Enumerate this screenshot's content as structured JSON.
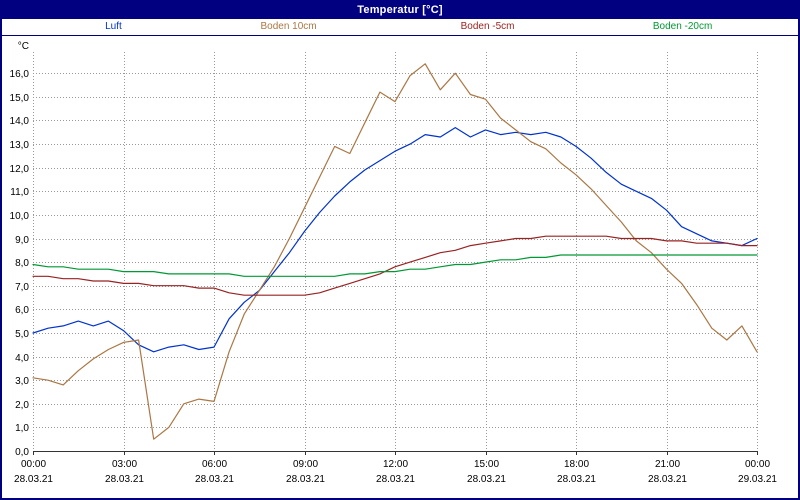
{
  "chart_data": {
    "type": "line",
    "title": "Temperatur [°C]",
    "ylabel": "°C",
    "xlabel": "",
    "x_range": [
      0,
      24
    ],
    "ylim": [
      0,
      16.9
    ],
    "grid": "dotted",
    "legend_position": "top",
    "colors": {
      "frame": "#000080",
      "grid": "#999999",
      "background": "#ffffff",
      "axis": "#333333"
    },
    "y_tick_labels": [
      "0,0",
      "1,0",
      "2,0",
      "3,0",
      "4,0",
      "5,0",
      "6,0",
      "7,0",
      "8,0",
      "9,0",
      "10,0",
      "11,0",
      "12,0",
      "13,0",
      "14,0",
      "15,0",
      "16,0"
    ],
    "x_ticks": [
      {
        "t": 0,
        "time": "00:00",
        "date": "28.03.21"
      },
      {
        "t": 3,
        "time": "03:00",
        "date": "28.03.21"
      },
      {
        "t": 6,
        "time": "06:00",
        "date": "28.03.21"
      },
      {
        "t": 9,
        "time": "09:00",
        "date": "28.03.21"
      },
      {
        "t": 12,
        "time": "12:00",
        "date": "28.03.21"
      },
      {
        "t": 15,
        "time": "15:00",
        "date": "28.03.21"
      },
      {
        "t": 18,
        "time": "18:00",
        "date": "28.03.21"
      },
      {
        "t": 21,
        "time": "21:00",
        "date": "28.03.21"
      },
      {
        "t": 24,
        "time": "00:00",
        "date": "29.03.21"
      }
    ],
    "x": [
      0,
      0.5,
      1,
      1.5,
      2,
      2.5,
      3,
      3.5,
      4,
      4.5,
      5,
      5.5,
      6,
      6.5,
      7,
      7.5,
      8,
      8.5,
      9,
      9.5,
      10,
      10.5,
      11,
      11.5,
      12,
      12.5,
      13,
      13.5,
      14,
      14.5,
      15,
      15.5,
      16,
      16.5,
      17,
      17.5,
      18,
      18.5,
      19,
      19.5,
      20,
      20.5,
      21,
      21.5,
      22,
      22.5,
      23,
      23.5,
      24
    ],
    "series": [
      {
        "name": "Luft",
        "color": "#0033cc",
        "values": [
          5.0,
          5.2,
          5.3,
          5.5,
          5.3,
          5.5,
          5.1,
          4.5,
          4.2,
          4.4,
          4.5,
          4.3,
          4.4,
          5.6,
          6.3,
          6.8,
          7.6,
          8.4,
          9.3,
          10.1,
          10.8,
          11.4,
          11.9,
          12.3,
          12.7,
          13.0,
          13.4,
          13.3,
          13.7,
          13.3,
          13.6,
          13.4,
          13.5,
          13.4,
          13.5,
          13.3,
          12.9,
          12.4,
          11.8,
          11.3,
          11.0,
          10.7,
          10.2,
          9.5,
          9.2,
          8.9,
          8.8,
          8.7,
          9.0
        ]
      },
      {
        "name": "Boden 10cm",
        "color": "#aa7744",
        "values": [
          3.1,
          3.0,
          2.8,
          3.4,
          3.9,
          4.3,
          4.6,
          4.7,
          0.5,
          1.0,
          2.0,
          2.2,
          2.1,
          4.2,
          5.8,
          6.8,
          7.8,
          9.0,
          10.3,
          11.6,
          12.9,
          12.6,
          13.9,
          15.2,
          14.8,
          15.9,
          16.4,
          15.3,
          16.0,
          15.1,
          14.9,
          14.1,
          13.6,
          13.1,
          12.8,
          12.2,
          11.7,
          11.1,
          10.4,
          9.7,
          8.9,
          8.4,
          7.7,
          7.1,
          6.2,
          5.2,
          4.7,
          5.3,
          4.2
        ]
      },
      {
        "name": "Boden -5cm",
        "color": "#992222",
        "values": [
          7.4,
          7.4,
          7.3,
          7.3,
          7.2,
          7.2,
          7.1,
          7.1,
          7.0,
          7.0,
          7.0,
          6.9,
          6.9,
          6.7,
          6.6,
          6.6,
          6.6,
          6.6,
          6.6,
          6.7,
          6.9,
          7.1,
          7.3,
          7.5,
          7.8,
          8.0,
          8.2,
          8.4,
          8.5,
          8.7,
          8.8,
          8.9,
          9.0,
          9.0,
          9.1,
          9.1,
          9.1,
          9.1,
          9.1,
          9.0,
          9.0,
          9.0,
          8.9,
          8.9,
          8.8,
          8.8,
          8.8,
          8.7,
          8.7
        ]
      },
      {
        "name": "Boden -20cm",
        "color": "#009933",
        "values": [
          7.9,
          7.8,
          7.8,
          7.7,
          7.7,
          7.7,
          7.6,
          7.6,
          7.6,
          7.5,
          7.5,
          7.5,
          7.5,
          7.5,
          7.4,
          7.4,
          7.4,
          7.4,
          7.4,
          7.4,
          7.4,
          7.5,
          7.5,
          7.6,
          7.6,
          7.7,
          7.7,
          7.8,
          7.9,
          7.9,
          8.0,
          8.1,
          8.1,
          8.2,
          8.2,
          8.3,
          8.3,
          8.3,
          8.3,
          8.3,
          8.3,
          8.3,
          8.3,
          8.3,
          8.3,
          8.3,
          8.3,
          8.3,
          8.3
        ]
      }
    ]
  }
}
